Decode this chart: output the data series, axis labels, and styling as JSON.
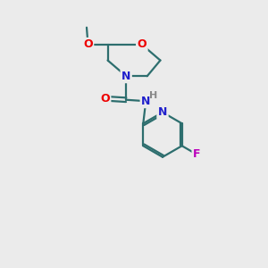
{
  "bg_color": "#ebebeb",
  "bond_color": "#2d6e6e",
  "atom_colors": {
    "O": "#ee0000",
    "N": "#2020cc",
    "F": "#bb00bb",
    "H": "#888888",
    "C": "#2d6e6e"
  },
  "bond_width": 1.6,
  "figsize": [
    3.0,
    3.0
  ],
  "dpi": 100
}
